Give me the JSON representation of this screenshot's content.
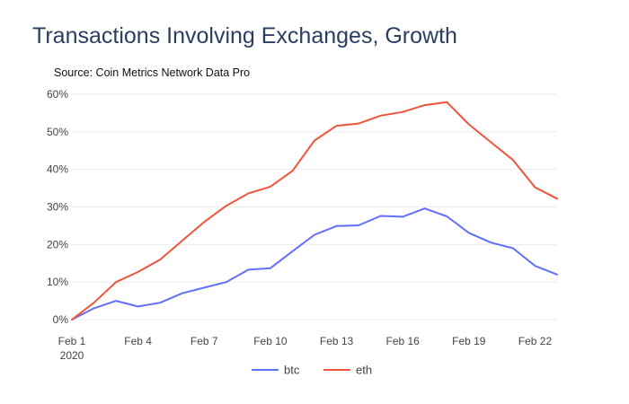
{
  "chart_data": {
    "type": "line",
    "title": "Transactions Involving Exchanges, Growth",
    "subtitle": "Source: Coin Metrics Network Data Pro",
    "xlabel": "",
    "ylabel": "",
    "x": [
      "2020-02-01",
      "2020-02-02",
      "2020-02-03",
      "2020-02-04",
      "2020-02-05",
      "2020-02-06",
      "2020-02-07",
      "2020-02-08",
      "2020-02-09",
      "2020-02-10",
      "2020-02-11",
      "2020-02-12",
      "2020-02-13",
      "2020-02-14",
      "2020-02-15",
      "2020-02-16",
      "2020-02-17",
      "2020-02-18",
      "2020-02-19",
      "2020-02-20",
      "2020-02-21",
      "2020-02-22",
      "2020-02-23"
    ],
    "x_ticks": [
      {
        "date": "2020-02-01",
        "label": "Feb 1",
        "sublabel": "2020"
      },
      {
        "date": "2020-02-04",
        "label": "Feb 4",
        "sublabel": ""
      },
      {
        "date": "2020-02-07",
        "label": "Feb 7",
        "sublabel": ""
      },
      {
        "date": "2020-02-10",
        "label": "Feb 10",
        "sublabel": ""
      },
      {
        "date": "2020-02-13",
        "label": "Feb 13",
        "sublabel": ""
      },
      {
        "date": "2020-02-16",
        "label": "Feb 16",
        "sublabel": ""
      },
      {
        "date": "2020-02-19",
        "label": "Feb 19",
        "sublabel": ""
      },
      {
        "date": "2020-02-22",
        "label": "Feb 22",
        "sublabel": ""
      }
    ],
    "xlim": [
      "2020-02-01",
      "2020-02-23"
    ],
    "ylim": [
      0,
      60
    ],
    "y_ticks": [
      0,
      10,
      20,
      30,
      40,
      50,
      60
    ],
    "y_tick_labels": [
      "0%",
      "10%",
      "20%",
      "30%",
      "40%",
      "50%",
      "60%"
    ],
    "grid": true,
    "legend_position": "bottom-center",
    "series": [
      {
        "name": "btc",
        "color": "#636efa",
        "values": [
          0,
          3,
          5,
          3.5,
          4.5,
          7,
          8.5,
          10,
          13.3,
          13.7,
          18.2,
          22.6,
          24.9,
          25.1,
          27.6,
          27.4,
          29.6,
          27.5,
          23.1,
          20.5,
          19.0,
          14.3,
          12.0
        ]
      },
      {
        "name": "eth",
        "color": "#ef553b",
        "values": [
          0,
          4.5,
          10,
          12.7,
          16,
          21,
          26,
          30.3,
          33.6,
          35.4,
          39.6,
          47.7,
          51.6,
          52.2,
          54.3,
          55.3,
          57.1,
          57.9,
          52.0,
          47.2,
          42.5,
          35.2,
          32.2
        ]
      }
    ]
  }
}
